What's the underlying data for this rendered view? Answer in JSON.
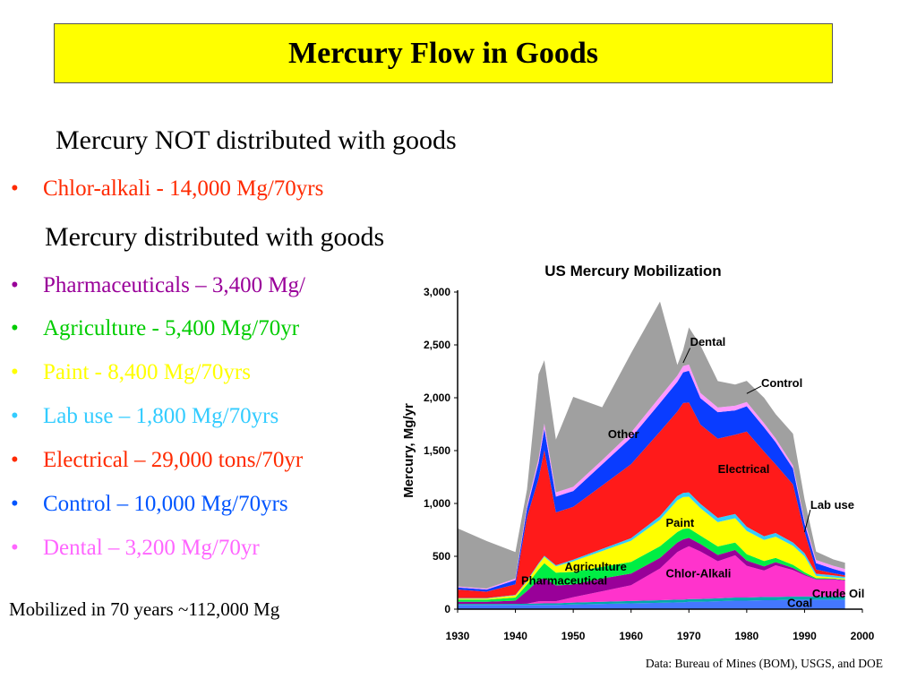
{
  "slide": {
    "title": "Mercury Flow in Goods",
    "heading_not": "Mercury NOT distributed with goods",
    "heading_with": "Mercury distributed with goods",
    "bullets_not": [
      {
        "label": "Chlor-alkali - 14,000 Mg/70yrs",
        "value": "",
        "color": "#ff2a00",
        "value_color": "#ff2a00"
      }
    ],
    "bullets_with": [
      {
        "label": "Pharmaceuticals",
        "value": " – 3,400 Mg/",
        "color": "#990099",
        "value_color": "#990099"
      },
      {
        "label": "Agriculture -  5,400 Mg/70yr",
        "value": "",
        "color": "#00cc00",
        "value_color": "#00cc00"
      },
      {
        "label": "Paint - 8,400 Mg/70yrs",
        "value": "",
        "color": "#ffff00",
        "value_color": "#ffff00"
      },
      {
        "label": "Lab use",
        "value": " – 1,800 Mg/70yrs",
        "color": "#33ccff",
        "value_color": "#33ccff"
      },
      {
        "label": "Electrical",
        "value": " – 29,000 tons/70yr",
        "color": "#ff2a00",
        "value_color": "#ff2a00"
      },
      {
        "label": "Control",
        "value": " – 10,000 Mg/70yrs",
        "color": "#0055ff",
        "value_color": "#0055ff"
      },
      {
        "label": "Dental",
        "value": " – 3,200 Mg/70yr",
        "color": "#ff66ff",
        "value_color": "#ff66ff"
      }
    ],
    "bullet_glyph": "•",
    "mobilized": "Mobilized in 70 years ~112,000 Mg",
    "source": "Data: Bureau of Mines (BOM), USGS, and DOE"
  },
  "chart_data": {
    "type": "area",
    "title": "US Mercury Mobilization",
    "ylabel": "Mercury, Mg/yr",
    "xlabel": "",
    "xlim": [
      1930,
      2000
    ],
    "ylim": [
      0,
      3000
    ],
    "xticks": [
      1930,
      1940,
      1950,
      1960,
      1970,
      1980,
      1990,
      2000
    ],
    "yticks": [
      "0",
      "500",
      "1,000",
      "1,500",
      "2,000",
      "2,500",
      "3,000"
    ],
    "stacked": true,
    "grid": false,
    "x": [
      1930,
      1935,
      1940,
      1942,
      1944,
      1945,
      1947,
      1950,
      1955,
      1960,
      1965,
      1968,
      1969,
      1970,
      1972,
      1975,
      1978,
      1980,
      1983,
      1985,
      1988,
      1990,
      1992,
      1995,
      1997
    ],
    "series": [
      {
        "name": "Coal",
        "color": "#4477ff",
        "values": [
          40,
          40,
          40,
          40,
          40,
          40,
          40,
          45,
          50,
          55,
          60,
          65,
          65,
          70,
          70,
          75,
          80,
          80,
          85,
          85,
          90,
          90,
          90,
          90,
          90
        ]
      },
      {
        "name": "Crude Oil",
        "color": "#00aaaa",
        "values": [
          10,
          10,
          10,
          12,
          14,
          15,
          15,
          18,
          20,
          22,
          25,
          25,
          25,
          25,
          26,
          28,
          30,
          30,
          30,
          30,
          30,
          30,
          30,
          30,
          30
        ]
      },
      {
        "name": "Chlor-Alkali",
        "color": "#ff33cc",
        "values": [
          0,
          0,
          0,
          0,
          20,
          20,
          20,
          50,
          100,
          150,
          300,
          450,
          480,
          500,
          450,
          350,
          400,
          300,
          250,
          300,
          250,
          200,
          160,
          160,
          150
        ]
      },
      {
        "name": "Pharmaceutical",
        "color": "#990099",
        "values": [
          20,
          20,
          30,
          120,
          200,
          220,
          150,
          120,
          120,
          110,
          100,
          90,
          90,
          80,
          70,
          60,
          50,
          50,
          40,
          30,
          20,
          10,
          5,
          5,
          5
        ]
      },
      {
        "name": "Agriculture",
        "color": "#00ee44",
        "values": [
          20,
          20,
          30,
          60,
          100,
          140,
          120,
          120,
          110,
          110,
          110,
          100,
          100,
          90,
          80,
          80,
          70,
          60,
          50,
          40,
          30,
          20,
          10,
          5,
          5
        ]
      },
      {
        "name": "Paint",
        "color": "#ffff00",
        "values": [
          10,
          10,
          20,
          30,
          50,
          60,
          60,
          100,
          150,
          200,
          250,
          300,
          300,
          300,
          260,
          230,
          230,
          220,
          200,
          200,
          180,
          150,
          20,
          10,
          10
        ]
      },
      {
        "name": "Lab use",
        "color": "#33ccff",
        "values": [
          5,
          5,
          5,
          10,
          10,
          10,
          10,
          15,
          20,
          25,
          35,
          40,
          40,
          40,
          40,
          40,
          40,
          40,
          35,
          35,
          30,
          30,
          20,
          20,
          15
        ]
      },
      {
        "name": "Electrical",
        "color": "#ff1a1a",
        "values": [
          80,
          60,
          100,
          600,
          800,
          1000,
          500,
          500,
          600,
          700,
          800,
          800,
          850,
          850,
          750,
          750,
          750,
          900,
          800,
          650,
          550,
          200,
          40,
          20,
          15
        ]
      },
      {
        "name": "Control",
        "color": "#0a3cff",
        "values": [
          20,
          20,
          40,
          80,
          150,
          200,
          150,
          150,
          200,
          250,
          270,
          280,
          290,
          300,
          250,
          250,
          230,
          240,
          230,
          210,
          150,
          80,
          60,
          40,
          30
        ]
      },
      {
        "name": "Dental",
        "color": "#ff99ff",
        "values": [
          10,
          10,
          15,
          30,
          40,
          50,
          40,
          40,
          40,
          50,
          60,
          60,
          60,
          60,
          50,
          45,
          45,
          40,
          40,
          35,
          30,
          30,
          30,
          30,
          30
        ]
      },
      {
        "name": "Other",
        "color": "#a0a0a0",
        "values": [
          550,
          450,
          250,
          150,
          800,
          600,
          500,
          850,
          500,
          750,
          900,
          100,
          150,
          350,
          450,
          250,
          200,
          200,
          240,
          230,
          300,
          200,
          80,
          60,
          60
        ]
      }
    ],
    "series_labels": [
      {
        "name": "Dental",
        "text": "Dental"
      },
      {
        "name": "Control",
        "text": "Control"
      },
      {
        "name": "Other",
        "text": "Other"
      },
      {
        "name": "Electrical",
        "text": "Electrical"
      },
      {
        "name": "Lab use",
        "text": "Lab use"
      },
      {
        "name": "Paint",
        "text": "Paint"
      },
      {
        "name": "Agriculture",
        "text": "Agriculture"
      },
      {
        "name": "Pharmaceutical",
        "text": "Pharmaceutical"
      },
      {
        "name": "Chlor-Alkali",
        "text": "Chlor-Alkali"
      },
      {
        "name": "Crude Oil",
        "text": "Crude Oil"
      },
      {
        "name": "Coal",
        "text": "Coal"
      }
    ]
  }
}
